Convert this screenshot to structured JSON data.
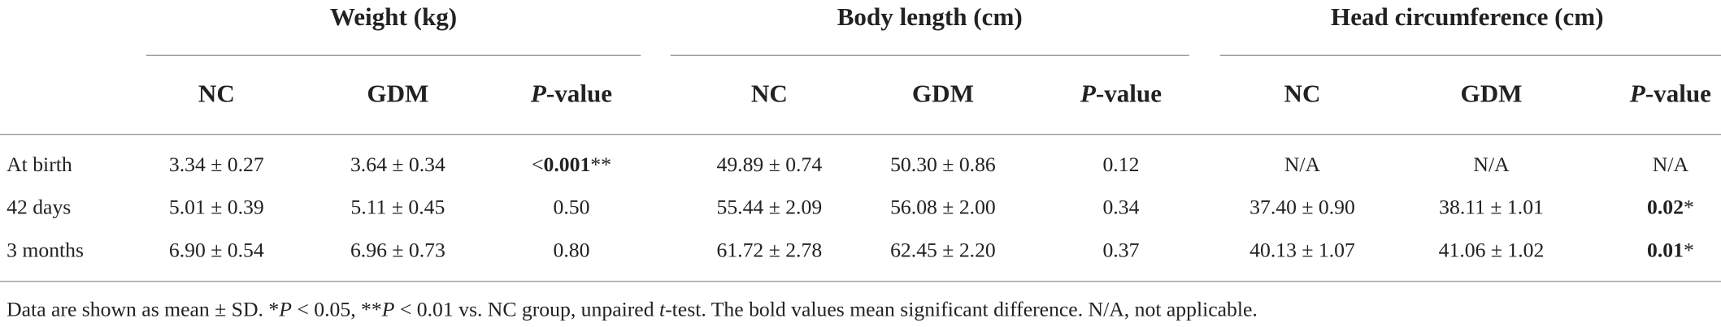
{
  "table": {
    "groups": [
      "Weight (kg)",
      "Body length (cm)",
      "Head circumference (cm)"
    ],
    "subheaders": [
      [
        {
          "text": "NC"
        }
      ],
      [
        {
          "text": "GDM"
        }
      ],
      [
        {
          "text": "P",
          "italic": true
        },
        {
          "text": "-value"
        }
      ],
      [
        {
          "text": "NC"
        }
      ],
      [
        {
          "text": "GDM"
        }
      ],
      [
        {
          "text": "P",
          "italic": true
        },
        {
          "text": "-value"
        }
      ],
      [
        {
          "text": "NC"
        }
      ],
      [
        {
          "text": "GDM"
        }
      ],
      [
        {
          "text": "P",
          "italic": true
        },
        {
          "text": "-value"
        }
      ]
    ],
    "rows": [
      [
        [
          {
            "text": "At birth"
          }
        ],
        [
          {
            "text": "3.34 ± 0.27"
          }
        ],
        [
          {
            "text": "3.64 ± 0.34"
          }
        ],
        [
          {
            "text": "<"
          },
          {
            "text": "0.001",
            "bold": true
          },
          {
            "text": "**"
          }
        ],
        [
          {
            "text": "49.89 ± 0.74"
          }
        ],
        [
          {
            "text": "50.30 ± 0.86"
          }
        ],
        [
          {
            "text": "0.12"
          }
        ],
        [
          {
            "text": "N/A"
          }
        ],
        [
          {
            "text": "N/A"
          }
        ],
        [
          {
            "text": "N/A"
          }
        ]
      ],
      [
        [
          {
            "text": "42 days"
          }
        ],
        [
          {
            "text": "5.01 ± 0.39"
          }
        ],
        [
          {
            "text": "5.11 ± 0.45"
          }
        ],
        [
          {
            "text": "0.50"
          }
        ],
        [
          {
            "text": "55.44 ± 2.09"
          }
        ],
        [
          {
            "text": "56.08 ± 2.00"
          }
        ],
        [
          {
            "text": "0.34"
          }
        ],
        [
          {
            "text": "37.40 ± 0.90"
          }
        ],
        [
          {
            "text": "38.11 ± 1.01"
          }
        ],
        [
          {
            "text": "0.02",
            "bold": true
          },
          {
            "text": "*"
          }
        ]
      ],
      [
        [
          {
            "text": "3 months"
          }
        ],
        [
          {
            "text": "6.90 ± 0.54"
          }
        ],
        [
          {
            "text": "6.96 ± 0.73"
          }
        ],
        [
          {
            "text": "0.80"
          }
        ],
        [
          {
            "text": "61.72 ± 2.78"
          }
        ],
        [
          {
            "text": "62.45 ± 2.20"
          }
        ],
        [
          {
            "text": "0.37"
          }
        ],
        [
          {
            "text": "40.13 ± 1.07"
          }
        ],
        [
          {
            "text": "41.06 ± 1.02"
          }
        ],
        [
          {
            "text": "0.01",
            "bold": true
          },
          {
            "text": "*"
          }
        ]
      ]
    ]
  },
  "footnote": [
    {
      "text": "Data are shown as mean ± SD. *"
    },
    {
      "text": "P",
      "italic": true
    },
    {
      "text": " < 0.05, **"
    },
    {
      "text": "P",
      "italic": true
    },
    {
      "text": " < 0.01 vs. NC group, unpaired "
    },
    {
      "text": "t",
      "italic": true
    },
    {
      "text": "-test. The bold values mean significant difference. N/A, not applicable."
    }
  ]
}
